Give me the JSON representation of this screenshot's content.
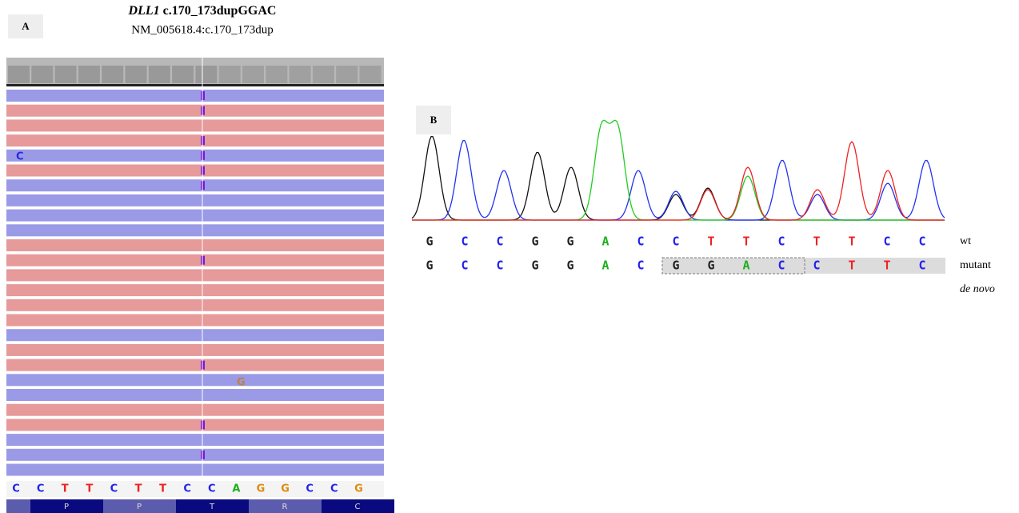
{
  "panel_a": {
    "label": "A",
    "title": {
      "gene": "DLL1",
      "variant": "c.170_173dupGGAC"
    },
    "subtitle": "NM_005618.4:c.170_173dup",
    "mismatches": [
      "C",
      "G"
    ],
    "reference": [
      "C",
      "C",
      "T",
      "T",
      "C",
      "T",
      "T",
      "C",
      "C",
      "A",
      "G",
      "G",
      "C",
      "C",
      "G"
    ],
    "amino_acids": [
      "P",
      "P",
      "T",
      "R",
      "C"
    ]
  },
  "panel_b": {
    "label": "B",
    "wt": {
      "name": "wt",
      "bases": [
        "G",
        "C",
        "C",
        "G",
        "G",
        "A",
        "C",
        "C",
        "T",
        "T",
        "C",
        "T",
        "T",
        "C",
        "C"
      ]
    },
    "mutant": {
      "name": "mutant",
      "bases": [
        "G",
        "C",
        "C",
        "G",
        "G",
        "A",
        "C",
        "G",
        "G",
        "A",
        "C",
        "C",
        "T",
        "T",
        "C"
      ]
    },
    "note": "de novo"
  }
}
